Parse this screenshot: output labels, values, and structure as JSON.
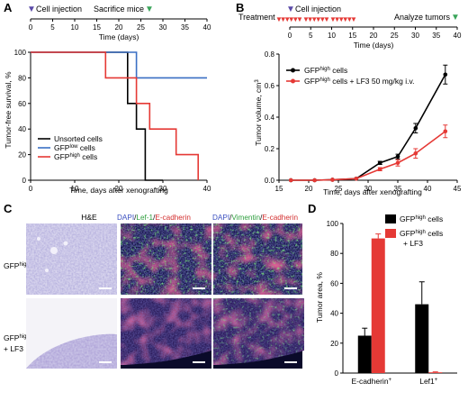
{
  "panels": {
    "A": {
      "letter": "A",
      "timeline": {
        "cell_injection": "Cell injection",
        "sacrifice": "Sacrifice mice",
        "ticks": [
          "0",
          "5",
          "10",
          "15",
          "20",
          "25",
          "30",
          "35",
          "40"
        ],
        "xlabel": "Time (days)"
      },
      "colors": {
        "black": "#000000",
        "blue": "#3a6fc4",
        "red": "#e53935",
        "green": "#3aa55a",
        "purple": "#5b4aa8"
      }
    },
    "B": {
      "letter": "B",
      "timeline": {
        "treatment": "Treatment",
        "cell_injection": "Cell injection",
        "analyze": "Analyze tumors",
        "ticks": [
          "0",
          "5",
          "10",
          "15",
          "20",
          "25",
          "30",
          "35",
          "40"
        ],
        "xlabel": "Time (days)"
      }
    },
    "C": {
      "letter": "C",
      "col_he": "H&E",
      "col_lef": {
        "dapi": "DAPI",
        "sep1": "/",
        "lef": "Lef-1",
        "sep2": "/",
        "ecad": "E-cadherin"
      },
      "col_vim": {
        "dapi": "DAPI",
        "sep1": "/",
        "vim": "Vimentin",
        "sep2": "/",
        "ecad": "E-cadherin"
      },
      "row1": {
        "base": "GFP",
        "sup": "high",
        "rest": " cells"
      },
      "row2": {
        "base": "GFP",
        "sup": "high",
        "rest": " cells",
        "line2": "+ LF3"
      }
    },
    "D": {
      "letter": "D"
    }
  },
  "chart_data": [
    {
      "panel": "A",
      "type": "line",
      "step": true,
      "xlabel": "Time, days after xenografting",
      "ylabel": "Tumor-free survival, %",
      "xlim": [
        0,
        40
      ],
      "ylim": [
        0,
        100
      ],
      "xticks": [
        0,
        10,
        20,
        30,
        40
      ],
      "yticks": [
        0,
        20,
        40,
        60,
        80,
        100
      ],
      "legend_position": "bottom-left",
      "series": [
        {
          "name_base": "Unsorted cells",
          "name_sup": "",
          "name_rest": "",
          "color": "#000000",
          "x": [
            0,
            22,
            22,
            24,
            24,
            26,
            26,
            30
          ],
          "y": [
            100,
            100,
            60,
            60,
            40,
            40,
            0,
            0
          ]
        },
        {
          "name_base": "GFP",
          "name_sup": "low",
          "name_rest": " cells",
          "color": "#3a6fc4",
          "x": [
            0,
            24,
            24,
            40
          ],
          "y": [
            100,
            100,
            80,
            80
          ]
        },
        {
          "name_base": "GFP",
          "name_sup": "high",
          "name_rest": " cells",
          "color": "#e53935",
          "x": [
            0,
            17,
            17,
            24,
            24,
            27,
            27,
            33,
            33,
            38,
            38
          ],
          "y": [
            100,
            100,
            80,
            80,
            60,
            60,
            40,
            40,
            20,
            20,
            0
          ]
        }
      ]
    },
    {
      "panel": "B",
      "type": "line",
      "xlabel": "Time, days after xenografting",
      "ylabel": "Tumor volume, cm",
      "ylabel_sup": "3",
      "xlim": [
        15,
        45
      ],
      "ylim": [
        0,
        0.8
      ],
      "xticks": [
        15,
        20,
        25,
        30,
        35,
        40,
        45
      ],
      "yticks": [
        0.0,
        0.2,
        0.4,
        0.6,
        0.8
      ],
      "legend_position": "top-left",
      "series": [
        {
          "name_base": "GFP",
          "name_sup": "high",
          "name_rest": " cells",
          "color": "#000000",
          "x": [
            17,
            21,
            24,
            28,
            32,
            35,
            38,
            43
          ],
          "y": [
            0,
            0,
            0.003,
            0.01,
            0.11,
            0.15,
            0.33,
            0.67
          ],
          "err": [
            0,
            0,
            0,
            0,
            0.01,
            0.015,
            0.03,
            0.06
          ]
        },
        {
          "name_base": "GFP",
          "name_sup": "high",
          "name_rest": " cells + LF3 50 mg/kg i.v.",
          "color": "#e53935",
          "x": [
            17,
            21,
            24,
            28,
            32,
            35,
            38,
            43
          ],
          "y": [
            0,
            0,
            0.003,
            0.01,
            0.07,
            0.11,
            0.17,
            0.31
          ],
          "err": [
            0,
            0,
            0,
            0,
            0.01,
            0.02,
            0.03,
            0.04
          ]
        }
      ]
    },
    {
      "panel": "D",
      "type": "bar",
      "ylabel": "Tumor area, %",
      "ylim": [
        0,
        100
      ],
      "yticks": [
        0,
        20,
        40,
        60,
        80,
        100
      ],
      "categories": [
        {
          "base": "E-cadherin",
          "sup": "+"
        },
        {
          "base": "Lef1",
          "sup": "+"
        }
      ],
      "legend_position": "top-right",
      "series": [
        {
          "name_base": "GFP",
          "name_sup": "high",
          "name_rest": " cells",
          "name_line2": "",
          "color": "#000000",
          "values": [
            25,
            46
          ],
          "err": [
            5,
            15
          ]
        },
        {
          "name_base": "GFP",
          "name_sup": "high",
          "name_rest": " cells",
          "name_line2": "+ LF3",
          "color": "#e53935",
          "values": [
            90,
            0.5
          ],
          "err": [
            3,
            0.3
          ]
        }
      ]
    }
  ]
}
